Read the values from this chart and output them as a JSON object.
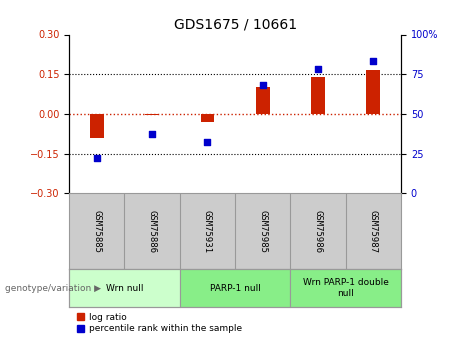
{
  "title": "GDS1675 / 10661",
  "samples": [
    "GSM75885",
    "GSM75886",
    "GSM75931",
    "GSM75985",
    "GSM75986",
    "GSM75987"
  ],
  "log_ratio": [
    -0.09,
    -0.005,
    -0.03,
    0.1,
    0.14,
    0.165
  ],
  "percentile_rank": [
    22,
    37,
    32,
    68,
    78,
    83
  ],
  "ylim_left": [
    -0.3,
    0.3
  ],
  "ylim_right": [
    0,
    100
  ],
  "yticks_left": [
    -0.3,
    -0.15,
    0,
    0.15,
    0.3
  ],
  "yticks_right": [
    0,
    25,
    50,
    75,
    100
  ],
  "bar_color": "#cc2200",
  "dot_color": "#0000cc",
  "hline_color": "#cc2200",
  "dotted_line_color": "#000000",
  "groups": [
    {
      "label": "Wrn null",
      "start": 0,
      "end": 2,
      "color": "#ccffcc"
    },
    {
      "label": "PARP-1 null",
      "start": 2,
      "end": 4,
      "color": "#88ee88"
    },
    {
      "label": "Wrn PARP-1 double\nnull",
      "start": 4,
      "end": 6,
      "color": "#88ee88"
    }
  ],
  "legend_bar_label": "log ratio",
  "legend_dot_label": "percentile rank within the sample",
  "genotype_label": "genotype/variation",
  "bg_color_plot": "#ffffff",
  "bg_color_xticklabels": "#cccccc",
  "tick_label_fontsize": 7,
  "title_fontsize": 10
}
